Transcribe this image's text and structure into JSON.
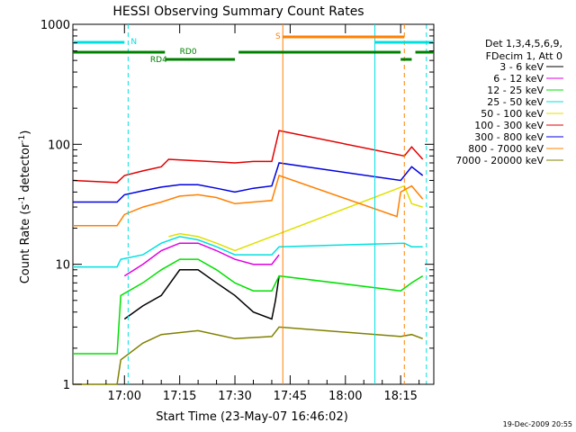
{
  "chart_data": {
    "type": "line",
    "title": "HESSI Observing Summary Count Rates",
    "xlabel": "Start Time (23-May-07 16:46:02)",
    "ylabel_main": "Count Rate (s",
    "ylabel_sup": "-1",
    "ylabel_mid": " detector",
    "ylabel_end": ")",
    "yscale": "log",
    "ylim": [
      1,
      1000
    ],
    "xlim_minutes": [
      16.77,
      18.4
    ],
    "x_unit": "time of day (hh:mm)",
    "yticks": [
      {
        "value": 1,
        "label": "1"
      },
      {
        "value": 10,
        "label": "10"
      },
      {
        "value": 100,
        "label": "100"
      },
      {
        "value": 1000,
        "label": "1000"
      }
    ],
    "xticks": [
      {
        "t": "17:00",
        "label": "17:00"
      },
      {
        "t": "17:15",
        "label": "17:15"
      },
      {
        "t": "17:30",
        "label": "17:30"
      },
      {
        "t": "17:45",
        "label": "17:45"
      },
      {
        "t": "18:00",
        "label": "18:00"
      },
      {
        "t": "18:15",
        "label": "18:15"
      }
    ],
    "legend": {
      "header": [
        "Det 1,3,4,5,6,9,",
        "FDecim 1, Att 0"
      ],
      "placement": "right"
    },
    "series": [
      {
        "name": "3 - 6 keV",
        "color": "#000000",
        "points": [
          [
            "16:59",
            null
          ],
          [
            "17:00",
            3.5
          ],
          [
            "17:05",
            4.5
          ],
          [
            "17:10",
            5.5
          ],
          [
            "17:15",
            9
          ],
          [
            "17:20",
            9
          ],
          [
            "17:25",
            7
          ],
          [
            "17:30",
            5.5
          ],
          [
            "17:35",
            4
          ],
          [
            "17:40",
            3.5
          ],
          [
            "17:41",
            5
          ],
          [
            "17:42",
            8
          ]
        ]
      },
      {
        "name": "6 - 12 keV",
        "color": "#e000e0",
        "points": [
          [
            "16:46",
            null
          ],
          [
            "17:00",
            8
          ],
          [
            "17:05",
            10
          ],
          [
            "17:10",
            13
          ],
          [
            "17:15",
            15
          ],
          [
            "17:20",
            15
          ],
          [
            "17:25",
            13
          ],
          [
            "17:30",
            11
          ],
          [
            "17:35",
            10
          ],
          [
            "17:40",
            10
          ],
          [
            "17:42",
            12
          ]
        ]
      },
      {
        "name": "12 - 25 keV",
        "color": "#00e000",
        "points": [
          [
            "16:46",
            1.8
          ],
          [
            "16:58",
            1.8
          ],
          [
            "16:59",
            5.5
          ],
          [
            "17:05",
            7
          ],
          [
            "17:10",
            9
          ],
          [
            "17:15",
            11
          ],
          [
            "17:20",
            11
          ],
          [
            "17:25",
            9
          ],
          [
            "17:30",
            7
          ],
          [
            "17:35",
            6
          ],
          [
            "17:40",
            6
          ],
          [
            "17:42",
            8
          ],
          [
            "18:15",
            6
          ],
          [
            "18:18",
            7
          ],
          [
            "18:21",
            8
          ]
        ]
      },
      {
        "name": "25 - 50 keV",
        "color": "#00e0e0",
        "points": [
          [
            "16:46",
            9.5
          ],
          [
            "16:58",
            9.5
          ],
          [
            "16:59",
            11
          ],
          [
            "17:05",
            12
          ],
          [
            "17:10",
            15
          ],
          [
            "17:15",
            17
          ],
          [
            "17:20",
            16
          ],
          [
            "17:25",
            14
          ],
          [
            "17:30",
            12
          ],
          [
            "17:35",
            12
          ],
          [
            "17:40",
            12
          ],
          [
            "17:42",
            14
          ],
          [
            "18:16",
            15
          ],
          [
            "18:18",
            14
          ],
          [
            "18:21",
            14
          ]
        ]
      },
      {
        "name": "50 - 100 keV",
        "color": "#e0e000",
        "points": [
          [
            "17:12",
            17
          ],
          [
            "17:15",
            18
          ],
          [
            "17:20",
            17
          ],
          [
            "17:25",
            15
          ],
          [
            "17:30",
            13
          ],
          [
            "18:16",
            45
          ],
          [
            "18:18",
            32
          ],
          [
            "18:21",
            30
          ]
        ]
      },
      {
        "name": "100 - 300 keV",
        "color": "#e00000",
        "points": [
          [
            "16:46",
            50
          ],
          [
            "16:58",
            48
          ],
          [
            "17:00",
            55
          ],
          [
            "17:05",
            60
          ],
          [
            "17:10",
            65
          ],
          [
            "17:12",
            75
          ],
          [
            "17:30",
            70
          ],
          [
            "17:35",
            72
          ],
          [
            "17:40",
            72
          ],
          [
            "17:42",
            130
          ],
          [
            "18:16",
            80
          ],
          [
            "18:18",
            95
          ],
          [
            "18:21",
            75
          ]
        ]
      },
      {
        "name": "300 - 800 keV",
        "color": "#0000e0",
        "points": [
          [
            "16:46",
            33
          ],
          [
            "16:58",
            33
          ],
          [
            "17:00",
            38
          ],
          [
            "17:05",
            41
          ],
          [
            "17:10",
            44
          ],
          [
            "17:15",
            46
          ],
          [
            "17:20",
            46
          ],
          [
            "17:25",
            43
          ],
          [
            "17:30",
            40
          ],
          [
            "17:35",
            43
          ],
          [
            "17:40",
            45
          ],
          [
            "17:42",
            70
          ],
          [
            "18:15",
            50
          ],
          [
            "18:18",
            65
          ],
          [
            "18:21",
            55
          ]
        ]
      },
      {
        "name": "800 - 7000 keV",
        "color": "#ff8000",
        "points": [
          [
            "16:46",
            21
          ],
          [
            "16:58",
            21
          ],
          [
            "17:00",
            26
          ],
          [
            "17:05",
            30
          ],
          [
            "17:10",
            33
          ],
          [
            "17:15",
            37
          ],
          [
            "17:20",
            38
          ],
          [
            "17:25",
            36
          ],
          [
            "17:30",
            32
          ],
          [
            "17:35",
            33
          ],
          [
            "17:40",
            34
          ],
          [
            "17:42",
            55
          ],
          [
            "18:14",
            25
          ],
          [
            "18:15",
            40
          ],
          [
            "18:18",
            45
          ],
          [
            "18:21",
            35
          ]
        ]
      },
      {
        "name": "7000 - 20000 keV",
        "color": "#808000",
        "points": [
          [
            "16:46",
            1
          ],
          [
            "16:58",
            1
          ],
          [
            "16:59",
            1.6
          ],
          [
            "17:05",
            2.2
          ],
          [
            "17:10",
            2.6
          ],
          [
            "17:20",
            2.8
          ],
          [
            "17:30",
            2.4
          ],
          [
            "17:40",
            2.5
          ],
          [
            "17:42",
            3
          ],
          [
            "18:15",
            2.5
          ],
          [
            "18:18",
            2.6
          ],
          [
            "18:21",
            2.4
          ]
        ]
      }
    ],
    "annotations": [
      {
        "text": "N",
        "color": "#00e0e0"
      },
      {
        "text": "S",
        "color": "#ff8000"
      },
      {
        "text": "RD0",
        "color": "#008000"
      },
      {
        "text": "RD4",
        "color": "#008000"
      }
    ],
    "timestamp": "19-Dec-2009 20:55"
  }
}
